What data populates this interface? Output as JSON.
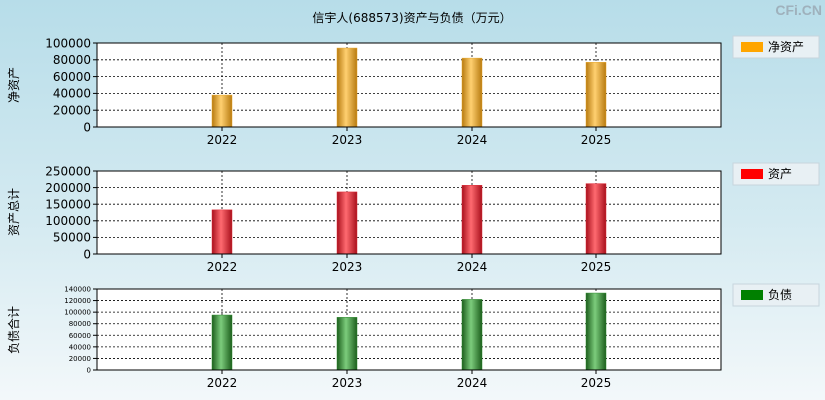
{
  "title": "信宇人(688573)资产与负债（万元）",
  "watermark": "CFi.CN",
  "chart_data": [
    {
      "type": "bar",
      "ylabel": "净资产",
      "legend": "净资产",
      "legend_color": "#ffa500",
      "bar_color": "#e8a628",
      "categories": [
        "2022",
        "2023",
        "2024",
        "2025"
      ],
      "values": [
        38000,
        94000,
        82000,
        77000
      ],
      "ylim": [
        0,
        100000
      ],
      "yticks": [
        "100000",
        "80000",
        "60000",
        "40000",
        "20000",
        "0"
      ]
    },
    {
      "type": "bar",
      "ylabel": "资产总计",
      "legend": "资产",
      "legend_color": "#ff0000",
      "bar_color": "#e0303c",
      "categories": [
        "2022",
        "2023",
        "2024",
        "2025"
      ],
      "values": [
        133000,
        187000,
        207000,
        212000
      ],
      "ylim": [
        0,
        250000
      ],
      "yticks": [
        "250000",
        "200000",
        "150000",
        "100000",
        "50000",
        "0"
      ]
    },
    {
      "type": "bar",
      "ylabel": "负债合计",
      "legend": "负债",
      "legend_color": "#008000",
      "bar_color": "#2e8b2e",
      "categories": [
        "2022",
        "2023",
        "2024",
        "2025"
      ],
      "values": [
        95000,
        91000,
        122000,
        133000
      ],
      "ylim": [
        0,
        140000
      ],
      "yticks": [
        "140000",
        "120000",
        "100000",
        "80000",
        "60000",
        "40000",
        "20000",
        "0"
      ]
    }
  ]
}
